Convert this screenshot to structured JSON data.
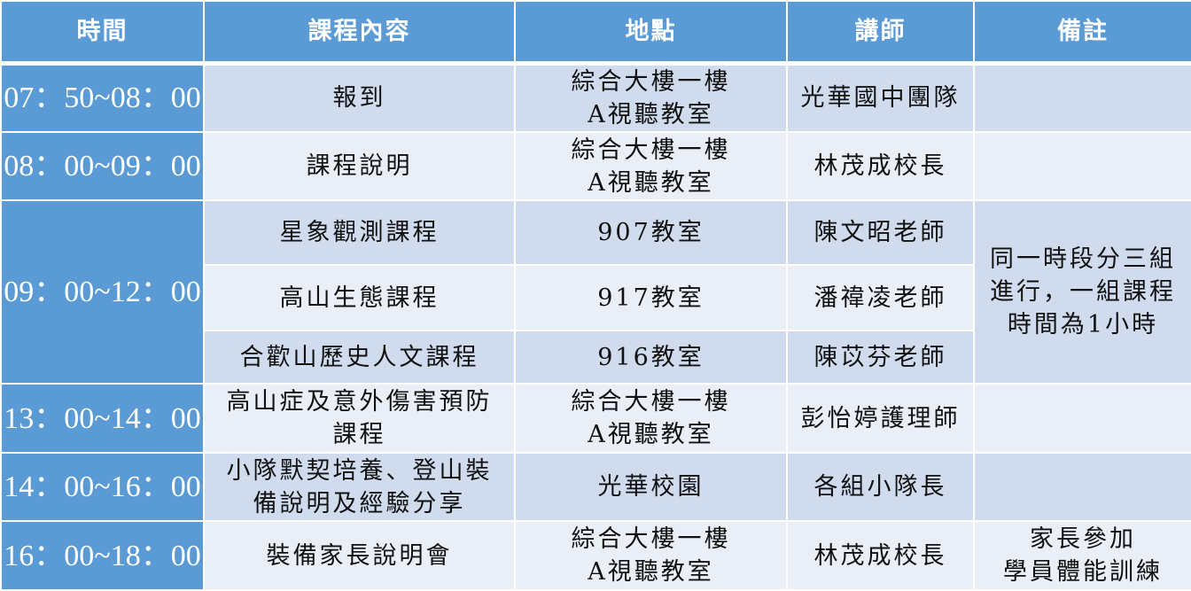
{
  "header": {
    "time": "時間",
    "course": "課程內容",
    "location": "地點",
    "instructor": "講師",
    "note": "備註"
  },
  "rows": [
    {
      "time": "07：50~08：00",
      "course": "報到",
      "location_line1": "綜合大樓一樓",
      "location_line2": "A視聽教室",
      "instructor": "光華國中團隊",
      "note": ""
    },
    {
      "time": "08：00~09：00",
      "course": "課程說明",
      "location_line1": "綜合大樓一樓",
      "location_line2": "A視聽教室",
      "instructor": "林茂成校長",
      "note": ""
    },
    {
      "time": "09：00~12：00",
      "sessions": [
        {
          "course": "星象觀測課程",
          "location": "907教室",
          "instructor": "陳文昭老師"
        },
        {
          "course": "高山生態課程",
          "location": "917教室",
          "instructor": "潘禕凌老師"
        },
        {
          "course": "合歡山歷史人文課程",
          "location": "916教室",
          "instructor": "陳苡芬老師"
        }
      ],
      "note": "同一時段分三組進行，一組課程時間為1小時"
    },
    {
      "time": "13：00~14：00",
      "course_line1": "高山症及意外傷害預防",
      "course_line2": "課程",
      "location_line1": "綜合大樓一樓",
      "location_line2": "A視聽教室",
      "instructor": "彭怡婷護理師",
      "note": ""
    },
    {
      "time": "14：00~16：00",
      "course_line1": "小隊默契培養、登山裝",
      "course_line2": "備說明及經驗分享",
      "location": "光華校園",
      "instructor": "各組小隊長",
      "note": ""
    },
    {
      "time": "16：00~18：00",
      "course": "裝備家長說明會",
      "location_line1": "綜合大樓一樓",
      "location_line2": "A視聽教室",
      "instructor": "林茂成校長",
      "note_line1": "家長參加",
      "note_line2": "學員體能訓練"
    }
  ],
  "colors": {
    "header": "#5b9bd5",
    "row_dark": "#d0dcee",
    "row_light": "#e9eef7",
    "border": "#ffffff"
  }
}
